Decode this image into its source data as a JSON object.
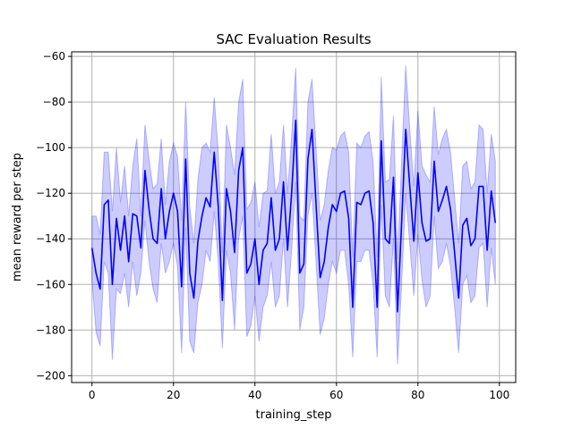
{
  "chart_data": {
    "type": "line",
    "title": "SAC Evaluation Results",
    "xlabel": "training_step",
    "ylabel": "mean reward per step",
    "xlim": [
      -5,
      104
    ],
    "ylim": [
      -203,
      -58
    ],
    "xticks": [
      0,
      20,
      40,
      60,
      80,
      100
    ],
    "yticks": [
      -200,
      -180,
      -160,
      -140,
      -120,
      -100,
      -80,
      -60
    ],
    "xtick_labels": [
      "0",
      "20",
      "40",
      "60",
      "80",
      "100"
    ],
    "ytick_labels": [
      "−200",
      "−180",
      "−160",
      "−140",
      "−120",
      "−100",
      "−80",
      "−60"
    ],
    "grid": true,
    "colors": {
      "line": "#0000ff",
      "band": "#0000ff"
    },
    "series": [
      {
        "name": "mean reward",
        "x": [
          0,
          1,
          2,
          3,
          4,
          5,
          6,
          7,
          8,
          9,
          10,
          11,
          12,
          13,
          14,
          15,
          16,
          17,
          18,
          19,
          20,
          21,
          22,
          23,
          24,
          25,
          26,
          27,
          28,
          29,
          30,
          31,
          32,
          33,
          34,
          35,
          36,
          37,
          38,
          39,
          40,
          41,
          42,
          43,
          44,
          45,
          46,
          47,
          48,
          49,
          50,
          51,
          52,
          53,
          54,
          55,
          56,
          57,
          58,
          59,
          60,
          61,
          62,
          63,
          64,
          65,
          66,
          67,
          68,
          69,
          70,
          71,
          72,
          73,
          74,
          75,
          76,
          77,
          78,
          79,
          80,
          81,
          82,
          83,
          84,
          85,
          86,
          87,
          88,
          89,
          90,
          91,
          92,
          93,
          94,
          95,
          96,
          97,
          98,
          99
        ],
        "values": [
          -144,
          -155,
          -162,
          -125,
          -123,
          -160,
          -131,
          -145,
          -130,
          -150,
          -129,
          -130,
          -144,
          -110,
          -127,
          -140,
          -142,
          -118,
          -140,
          -128,
          -120,
          -128,
          -161,
          -105,
          -155,
          -166,
          -141,
          -130,
          -122,
          -126,
          -102,
          -126,
          -167,
          -118,
          -128,
          -146,
          -110,
          -100,
          -155,
          -151,
          -140,
          -160,
          -145,
          -142,
          -122,
          -145,
          -140,
          -115,
          -145,
          -120,
          -88,
          -155,
          -151,
          -105,
          -92,
          -125,
          -157,
          -150,
          -135,
          -125,
          -128,
          -120,
          -119,
          -131,
          -170,
          -124,
          -125,
          -120,
          -119,
          -133,
          -170,
          -97,
          -140,
          -142,
          -113,
          -172,
          -133,
          -92,
          -117,
          -141,
          -111,
          -133,
          -141,
          -140,
          -106,
          -128,
          -123,
          -117,
          -127,
          -146,
          -166,
          -134,
          -131,
          -143,
          -140,
          -117,
          -117,
          -145,
          -119,
          -133
        ],
        "lower": [
          -158,
          -181,
          -187,
          -150,
          -155,
          -193,
          -162,
          -164,
          -155,
          -170,
          -150,
          -165,
          -155,
          -132,
          -150,
          -162,
          -168,
          -142,
          -155,
          -150,
          -142,
          -152,
          -190,
          -135,
          -185,
          -190,
          -168,
          -160,
          -145,
          -150,
          -128,
          -150,
          -188,
          -145,
          -155,
          -180,
          -140,
          -130,
          -183,
          -178,
          -165,
          -185,
          -170,
          -165,
          -150,
          -170,
          -165,
          -140,
          -170,
          -145,
          -115,
          -180,
          -170,
          -130,
          -120,
          -150,
          -182,
          -175,
          -160,
          -150,
          -155,
          -145,
          -145,
          -160,
          -192,
          -150,
          -150,
          -145,
          -145,
          -160,
          -192,
          -125,
          -165,
          -170,
          -140,
          -195,
          -160,
          -120,
          -142,
          -165,
          -138,
          -158,
          -170,
          -165,
          -130,
          -153,
          -150,
          -142,
          -152,
          -170,
          -190,
          -160,
          -156,
          -168,
          -165,
          -144,
          -142,
          -170,
          -144,
          -160
        ],
        "upper": [
          -130,
          -130,
          -138,
          -102,
          -102,
          -128,
          -100,
          -124,
          -108,
          -130,
          -108,
          -96,
          -130,
          -90,
          -105,
          -118,
          -116,
          -96,
          -125,
          -106,
          -98,
          -104,
          -132,
          -80,
          -126,
          -142,
          -114,
          -100,
          -98,
          -102,
          -78,
          -102,
          -146,
          -90,
          -100,
          -112,
          -80,
          -70,
          -127,
          -124,
          -115,
          -135,
          -120,
          -119,
          -94,
          -120,
          -115,
          -90,
          -120,
          -95,
          -65,
          -130,
          -132,
          -80,
          -70,
          -100,
          -132,
          -125,
          -110,
          -100,
          -101,
          -95,
          -93,
          -102,
          -148,
          -98,
          -100,
          -95,
          -93,
          -106,
          -148,
          -69,
          -115,
          -114,
          -86,
          -149,
          -106,
          -64,
          -92,
          -117,
          -84,
          -108,
          -112,
          -115,
          -82,
          -103,
          -96,
          -92,
          -102,
          -122,
          -142,
          -108,
          -106,
          -118,
          -115,
          -90,
          -92,
          -120,
          -94,
          -106
        ]
      }
    ]
  }
}
